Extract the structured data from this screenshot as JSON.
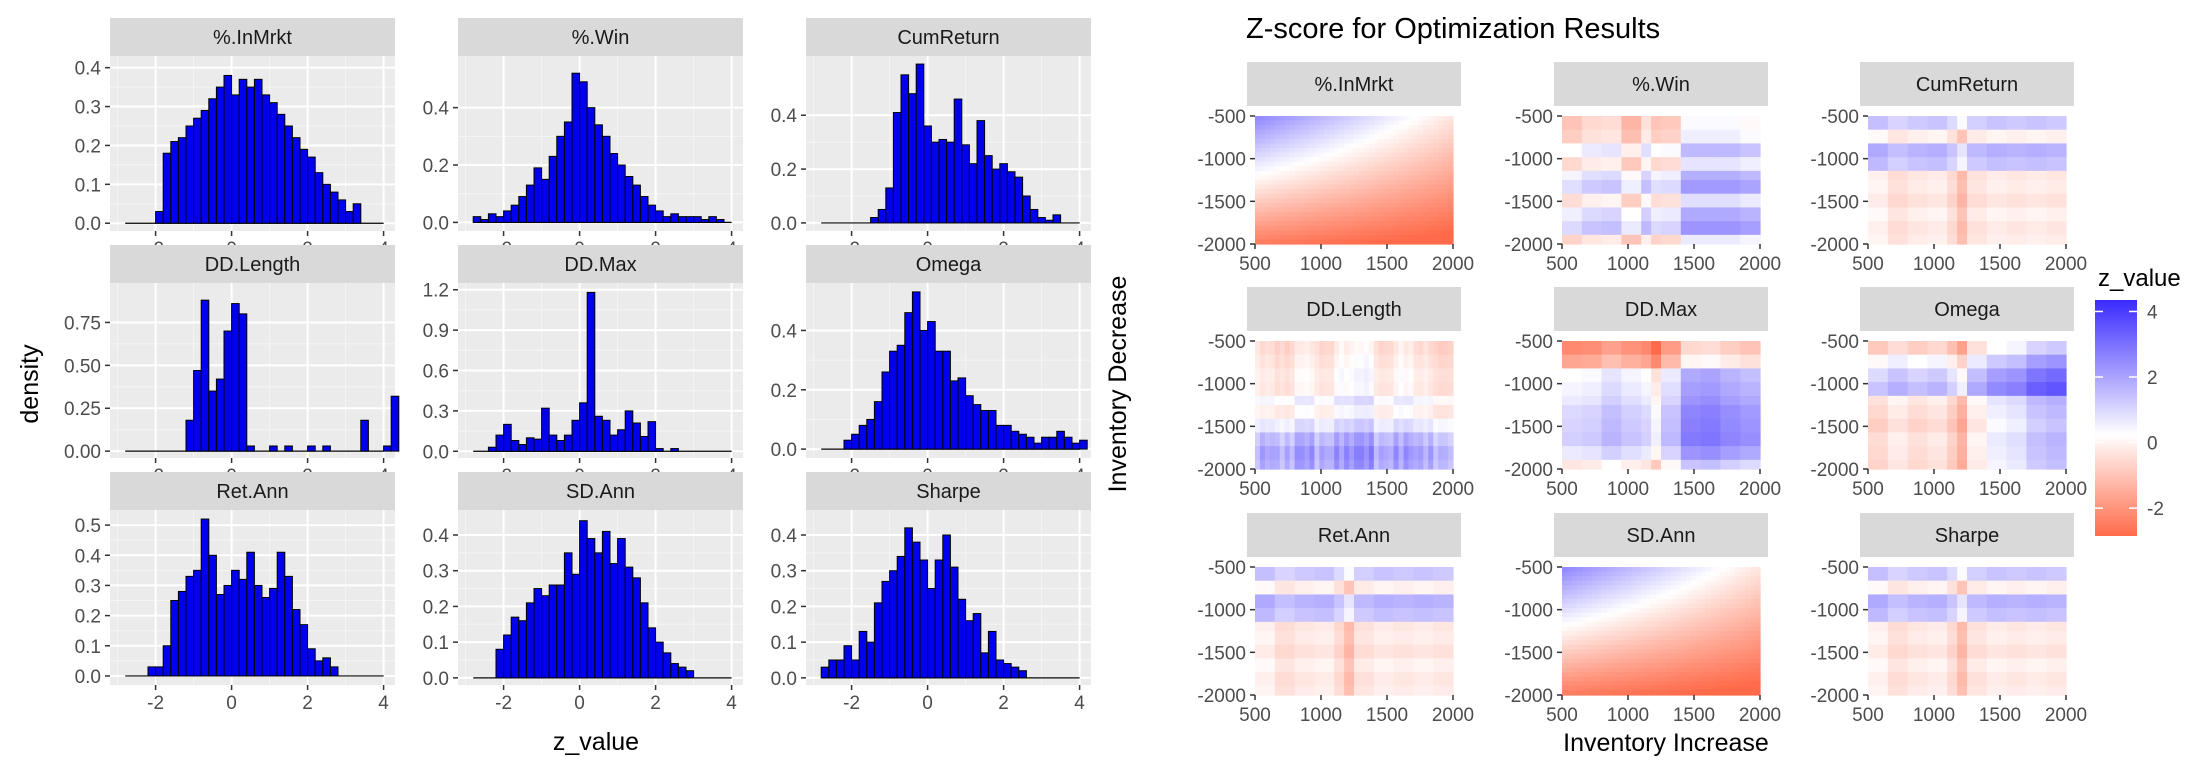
{
  "histograms": {
    "xlabel": "z_value",
    "ylabel": "density",
    "bar_fill": "#0000ee",
    "bar_stroke": "#000000",
    "panel_bg": "#ebebeb",
    "strip_bg": "#d9d9d9"
  },
  "heatmaps": {
    "title": "Z-score for Optimization Results",
    "xlabel": "Inventory Increase",
    "ylabel": "Inventory Decrease",
    "legend_title": "z_value",
    "legend_ticks": [
      "4",
      "2",
      "0",
      "-2"
    ],
    "colors": {
      "low": "#ff6b4a",
      "mid": "#ffffff",
      "high": "#3a2aff"
    }
  },
  "chart_data": [
    {
      "type": "bar",
      "subtype": "faceted-histogram",
      "xlabel": "z_value",
      "ylabel": "density",
      "panels": [
        {
          "name": "%.InMrkt",
          "xlim": [
            -3.2,
            4.3
          ],
          "xticks": [
            "-2",
            "0",
            "2",
            "4"
          ],
          "ylim": [
            -0.02,
            0.43
          ],
          "yticks": [
            "0.0",
            "0.1",
            "0.2",
            "0.3",
            "0.4"
          ],
          "x0": -2.0,
          "bw": 0.2,
          "values": [
            0.03,
            0.18,
            0.21,
            0.22,
            0.25,
            0.27,
            0.29,
            0.32,
            0.35,
            0.38,
            0.33,
            0.37,
            0.35,
            0.37,
            0.33,
            0.31,
            0.28,
            0.25,
            0.22,
            0.19,
            0.17,
            0.13,
            0.1,
            0.08,
            0.06,
            0.03,
            0.05
          ]
        },
        {
          "name": "%.Win",
          "xlim": [
            -3.2,
            4.3
          ],
          "xticks": [
            "-2",
            "0",
            "2",
            "4"
          ],
          "ylim": [
            -0.03,
            0.58
          ],
          "yticks": [
            "0.0",
            "0.2",
            "0.4"
          ],
          "x0": -2.8,
          "bw": 0.2,
          "values": [
            0.02,
            0.01,
            0.03,
            0.02,
            0.04,
            0.06,
            0.09,
            0.13,
            0.19,
            0.15,
            0.23,
            0.3,
            0.35,
            0.52,
            0.49,
            0.4,
            0.34,
            0.3,
            0.24,
            0.2,
            0.16,
            0.13,
            0.09,
            0.06,
            0.04,
            0.02,
            0.03,
            0.02,
            0.02,
            0.02,
            0.01,
            0.02,
            0.01
          ]
        },
        {
          "name": "CumReturn",
          "xlim": [
            -3.2,
            4.3
          ],
          "xticks": [
            "-2",
            "0",
            "2",
            "4"
          ],
          "ylim": [
            -0.03,
            0.62
          ],
          "yticks": [
            "0.0",
            "0.2",
            "0.4"
          ],
          "x0": -1.5,
          "bw": 0.2,
          "values": [
            0.02,
            0.05,
            0.13,
            0.41,
            0.55,
            0.48,
            0.59,
            0.36,
            0.3,
            0.31,
            0.3,
            0.46,
            0.29,
            0.22,
            0.38,
            0.25,
            0.2,
            0.22,
            0.19,
            0.17,
            0.1,
            0.05,
            0.02,
            0.01,
            0.03
          ]
        },
        {
          "name": "DD.Length",
          "xlim": [
            -3.2,
            4.3
          ],
          "xticks": [
            "-2",
            "0",
            "2",
            "4"
          ],
          "ylim": [
            -0.04,
            0.98
          ],
          "yticks": [
            "0.00",
            "0.25",
            "0.50",
            "0.75"
          ],
          "x0": -1.2,
          "bw": 0.2,
          "values": [
            0.18,
            0.47,
            0.88,
            0.35,
            0.42,
            0.7,
            0.86,
            0.8,
            0.03,
            0.0,
            0.0,
            0.03,
            0.0,
            0.03,
            0.0,
            0.0,
            0.03,
            0.0,
            0.03,
            0.0,
            0.0,
            0.0,
            0.0,
            0.18,
            0.0,
            0.0,
            0.03,
            0.32
          ]
        },
        {
          "name": "DD.Max",
          "xlim": [
            -3.2,
            4.3
          ],
          "xticks": [
            "-2",
            "0",
            "2",
            "4"
          ],
          "ylim": [
            -0.05,
            1.25
          ],
          "yticks": [
            "0.0",
            "0.3",
            "0.6",
            "0.9",
            "1.2"
          ],
          "x0": -2.4,
          "bw": 0.2,
          "values": [
            0.03,
            0.12,
            0.2,
            0.08,
            0.05,
            0.1,
            0.09,
            0.32,
            0.12,
            0.08,
            0.12,
            0.23,
            0.36,
            1.18,
            0.26,
            0.23,
            0.12,
            0.16,
            0.3,
            0.21,
            0.11,
            0.22,
            0.02,
            0.0,
            0.02
          ]
        },
        {
          "name": "Omega",
          "xlim": [
            -3.2,
            4.3
          ],
          "xticks": [
            "-2",
            "0",
            "2",
            "4"
          ],
          "ylim": [
            -0.03,
            0.56
          ],
          "yticks": [
            "0.0",
            "0.2",
            "0.4"
          ],
          "x0": -2.2,
          "bw": 0.2,
          "values": [
            0.03,
            0.05,
            0.08,
            0.1,
            0.16,
            0.26,
            0.33,
            0.35,
            0.46,
            0.53,
            0.4,
            0.43,
            0.33,
            0.33,
            0.23,
            0.24,
            0.18,
            0.15,
            0.13,
            0.13,
            0.08,
            0.08,
            0.06,
            0.05,
            0.04,
            0.02,
            0.04,
            0.04,
            0.06,
            0.04,
            0.02,
            0.03
          ]
        },
        {
          "name": "Ret.Ann",
          "xlim": [
            -3.2,
            4.3
          ],
          "xticks": [
            "-2",
            "0",
            "2",
            "4"
          ],
          "ylim": [
            -0.03,
            0.55
          ],
          "yticks": [
            "0.0",
            "0.1",
            "0.2",
            "0.3",
            "0.4",
            "0.5"
          ],
          "x0": -2.2,
          "bw": 0.2,
          "values": [
            0.03,
            0.03,
            0.1,
            0.25,
            0.28,
            0.33,
            0.35,
            0.52,
            0.4,
            0.27,
            0.3,
            0.35,
            0.32,
            0.41,
            0.3,
            0.26,
            0.29,
            0.41,
            0.33,
            0.22,
            0.17,
            0.09,
            0.05,
            0.06,
            0.03
          ]
        },
        {
          "name": "SD.Ann",
          "xlim": [
            -3.2,
            4.3
          ],
          "xticks": [
            "-2",
            "0",
            "2",
            "4"
          ],
          "ylim": [
            -0.02,
            0.47
          ],
          "yticks": [
            "0.0",
            "0.1",
            "0.2",
            "0.3",
            "0.4"
          ],
          "x0": -2.2,
          "bw": 0.2,
          "values": [
            0.08,
            0.12,
            0.17,
            0.16,
            0.21,
            0.25,
            0.23,
            0.26,
            0.26,
            0.35,
            0.29,
            0.44,
            0.39,
            0.35,
            0.41,
            0.32,
            0.39,
            0.31,
            0.28,
            0.21,
            0.14,
            0.1,
            0.07,
            0.04,
            0.03,
            0.02
          ]
        },
        {
          "name": "Sharpe",
          "xlim": [
            -3.2,
            4.3
          ],
          "xticks": [
            "-2",
            "0",
            "2",
            "4"
          ],
          "ylim": [
            -0.02,
            0.47
          ],
          "yticks": [
            "0.0",
            "0.1",
            "0.2",
            "0.3",
            "0.4"
          ],
          "x0": -2.8,
          "bw": 0.2,
          "values": [
            0.03,
            0.05,
            0.05,
            0.09,
            0.05,
            0.13,
            0.1,
            0.21,
            0.27,
            0.3,
            0.34,
            0.42,
            0.38,
            0.33,
            0.25,
            0.33,
            0.4,
            0.31,
            0.22,
            0.16,
            0.18,
            0.07,
            0.13,
            0.05,
            0.04,
            0.03,
            0.02
          ]
        }
      ]
    },
    {
      "type": "heatmap",
      "title": "Z-score for Optimization Results",
      "xlabel": "Inventory Increase",
      "ylabel": "Inventory Decrease",
      "legend_title": "z_value",
      "xlim": [
        450,
        2070
      ],
      "ylim": [
        -2060,
        -380
      ],
      "xticks": [
        "500",
        "1000",
        "1500",
        "2000"
      ],
      "yticks": [
        "-500",
        "-1000",
        "-1500",
        "-2000"
      ],
      "color_scale": {
        "low": -3,
        "mid": 0,
        "high": 4
      },
      "panels": [
        {
          "name": "%.InMrkt",
          "pattern": "gradient",
          "params": {
            "a": 1.5,
            "bx": -0.0012,
            "by": 0.0017,
            "c": 3.2
          }
        },
        {
          "name": "%.Win",
          "pattern": "bands",
          "rows": [
            -0.9,
            -0.7,
            0.3,
            -0.5,
            0.5,
            0.9,
            -0.4,
            0.6,
            1.0,
            -0.6
          ],
          "cols": [
            -0.3,
            0.1,
            0.2,
            -0.6,
            0.3,
            -0.2,
            1.0,
            1.0,
            1.0,
            0.8
          ]
        },
        {
          "name": "CumReturn",
          "pattern": "bands",
          "rows": [
            1.0,
            -0.3,
            1.4,
            1.1,
            -0.5,
            -0.4,
            -0.6,
            -0.3,
            -0.5,
            -0.4
          ],
          "cols": [
            0.2,
            -0.2,
            0.0,
            0.1,
            -0.3,
            -0.1,
            0.1,
            0.0,
            0.1,
            0.0
          ]
        },
        {
          "name": "DD.Length",
          "pattern": "blocks",
          "rows": [
            -0.8,
            -0.6,
            -0.4,
            -0.5,
            0.2,
            -0.3,
            0.5,
            1.5,
            2.0,
            1.8
          ],
          "cols": [
            0.0,
            -0.2,
            0.3,
            -0.1,
            0.4,
            0.6,
            -0.1,
            0.3,
            0.0,
            -0.3
          ]
        },
        {
          "name": "DD.Max",
          "pattern": "bands",
          "rows": [
            -2.2,
            -1.6,
            0.2,
            0.4,
            0.6,
            0.9,
            1.0,
            1.1,
            0.6,
            -0.3
          ],
          "cols": [
            -0.2,
            -0.1,
            0.3,
            0.0,
            -0.2,
            0.2,
            1.4,
            1.5,
            1.2,
            1.0
          ]
        },
        {
          "name": "Omega",
          "pattern": "bands",
          "rows": [
            -0.8,
            0.2,
            1.0,
            1.4,
            -0.3,
            -0.5,
            -0.7,
            -0.4,
            -0.5,
            -0.6
          ],
          "cols": [
            -0.3,
            0.1,
            -0.2,
            0.0,
            -0.5,
            0.2,
            0.8,
            1.0,
            1.6,
            1.8
          ]
        },
        {
          "name": "Ret.Ann",
          "pattern": "bands",
          "rows": [
            1.0,
            -0.3,
            1.4,
            1.1,
            -0.5,
            -0.4,
            -0.6,
            -0.3,
            -0.5,
            -0.4
          ],
          "cols": [
            0.2,
            -0.2,
            0.0,
            0.1,
            -0.3,
            -0.1,
            0.1,
            0.0,
            0.1,
            0.0
          ]
        },
        {
          "name": "SD.Ann",
          "pattern": "gradient",
          "params": {
            "a": 1.4,
            "bx": -0.0014,
            "by": 0.0017,
            "c": 3.0
          }
        },
        {
          "name": "Sharpe",
          "pattern": "bands",
          "rows": [
            1.0,
            -0.3,
            1.4,
            1.1,
            -0.5,
            -0.4,
            -0.6,
            -0.3,
            -0.5,
            -0.4
          ],
          "cols": [
            0.2,
            -0.2,
            0.0,
            0.1,
            -0.3,
            -0.1,
            0.1,
            0.0,
            0.1,
            0.0
          ]
        }
      ]
    }
  ]
}
